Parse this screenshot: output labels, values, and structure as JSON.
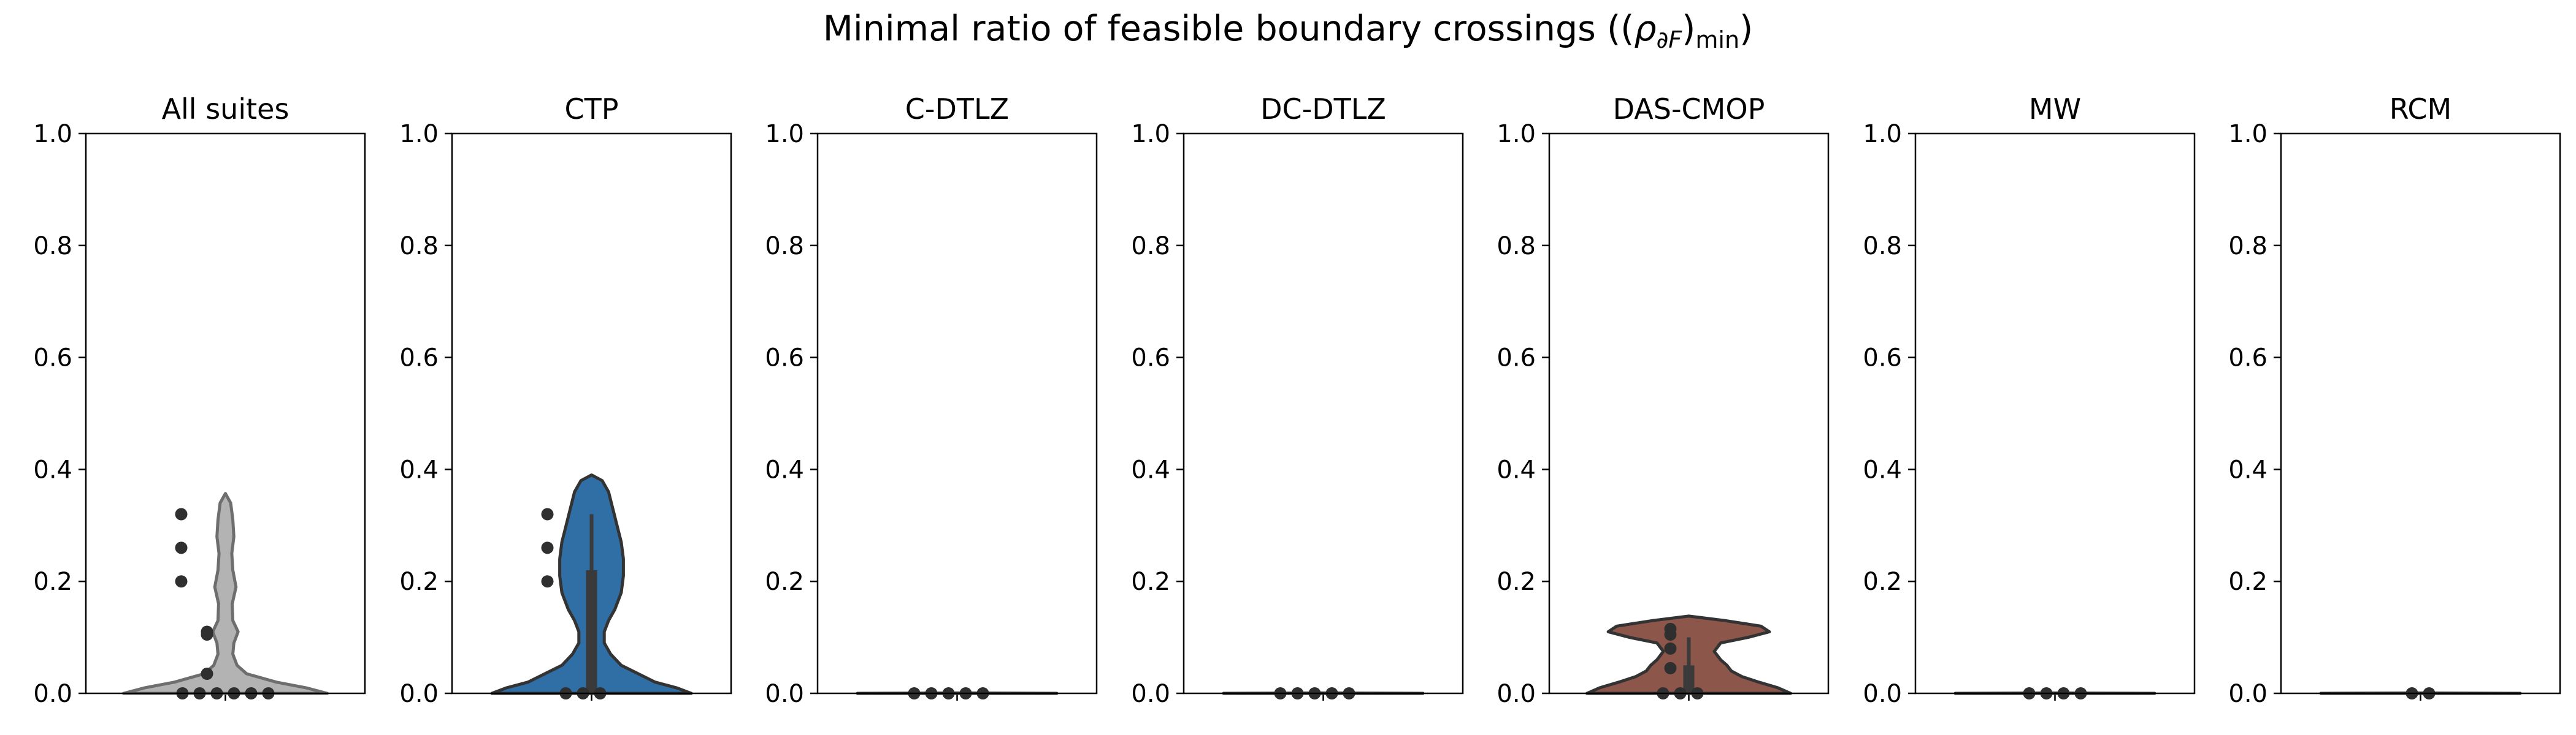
{
  "figure": {
    "title_main": "Minimal ratio of feasible boundary crossings ((",
    "title_rho": "ρ",
    "title_sub": "∂F",
    "title_close": ")",
    "title_min": "min",
    "title_end": ")"
  },
  "chart_data": [
    {
      "type": "violin",
      "title": "All suites",
      "color": "#b3b3b3",
      "edge_color": "#6e6e6e",
      "ylim": [
        0,
        1
      ],
      "yticks": [
        "0.0",
        "0.2",
        "0.4",
        "0.6",
        "0.8",
        "1.0"
      ],
      "points": [
        0.26,
        0.2,
        0.32,
        0.11,
        0.105,
        0.035,
        0.0,
        0.0,
        0.0,
        0.0,
        0.0,
        0.0
      ],
      "box": {
        "q1": 0.0,
        "median": 0.0,
        "q3": 0.0,
        "whisker_low": 0.0,
        "whisker_high": 0.0
      },
      "density": [
        [
          0.0,
          0.48
        ],
        [
          0.01,
          0.38
        ],
        [
          0.02,
          0.24
        ],
        [
          0.035,
          0.1
        ],
        [
          0.05,
          0.055
        ],
        [
          0.07,
          0.035
        ],
        [
          0.09,
          0.04
        ],
        [
          0.11,
          0.06
        ],
        [
          0.13,
          0.035
        ],
        [
          0.16,
          0.032
        ],
        [
          0.19,
          0.05
        ],
        [
          0.22,
          0.035
        ],
        [
          0.25,
          0.03
        ],
        [
          0.28,
          0.04
        ],
        [
          0.31,
          0.035
        ],
        [
          0.34,
          0.025
        ],
        [
          0.357,
          0.0
        ]
      ]
    },
    {
      "type": "violin",
      "title": "CTP",
      "color": "#2f6fa6",
      "edge_color": "#333333",
      "ylim": [
        0,
        1
      ],
      "yticks": [
        "0.0",
        "0.2",
        "0.4",
        "0.6",
        "0.8",
        "1.0"
      ],
      "points": [
        0.26,
        0.32,
        0.2,
        0.0,
        0.0,
        0.0
      ],
      "box": {
        "q1": 0.0,
        "median": 0.0,
        "q3": 0.22,
        "whisker_low": 0.0,
        "whisker_high": 0.32
      },
      "density": [
        [
          0.0,
          0.47
        ],
        [
          0.01,
          0.4
        ],
        [
          0.02,
          0.3
        ],
        [
          0.035,
          0.22
        ],
        [
          0.05,
          0.14
        ],
        [
          0.07,
          0.09
        ],
        [
          0.09,
          0.06
        ],
        [
          0.11,
          0.06
        ],
        [
          0.13,
          0.08
        ],
        [
          0.15,
          0.11
        ],
        [
          0.18,
          0.14
        ],
        [
          0.21,
          0.15
        ],
        [
          0.24,
          0.15
        ],
        [
          0.27,
          0.14
        ],
        [
          0.3,
          0.12
        ],
        [
          0.33,
          0.1
        ],
        [
          0.36,
          0.08
        ],
        [
          0.38,
          0.05
        ],
        [
          0.39,
          0.0
        ]
      ]
    },
    {
      "type": "violin",
      "title": "C-DTLZ",
      "color": "#ff7f0e",
      "edge_color": "#333333",
      "ylim": [
        0,
        1
      ],
      "yticks": [
        "0.0",
        "0.2",
        "0.4",
        "0.6",
        "0.8",
        "1.0"
      ],
      "points": [
        0.0,
        0.0,
        0.0,
        0.0,
        0.0
      ],
      "box": {
        "q1": 0.0,
        "median": 0.0,
        "q3": 0.0,
        "whisker_low": 0.0,
        "whisker_high": 0.0
      },
      "density": [
        [
          0.0,
          0.47
        ],
        [
          0.0005,
          0.0
        ]
      ]
    },
    {
      "type": "violin",
      "title": "DC-DTLZ",
      "color": "#2ca02c",
      "edge_color": "#333333",
      "ylim": [
        0,
        1
      ],
      "yticks": [
        "0.0",
        "0.2",
        "0.4",
        "0.6",
        "0.8",
        "1.0"
      ],
      "points": [
        0.0,
        0.0,
        0.0,
        0.0,
        0.0
      ],
      "box": {
        "q1": 0.0,
        "median": 0.0,
        "q3": 0.0,
        "whisker_low": 0.0,
        "whisker_high": 0.0
      },
      "density": [
        [
          0.0,
          0.47
        ],
        [
          0.0005,
          0.0
        ]
      ]
    },
    {
      "type": "violin",
      "title": "DAS-CMOP",
      "color": "#8c564b",
      "edge_color": "#333333",
      "ylim": [
        0,
        1
      ],
      "yticks": [
        "0.0",
        "0.2",
        "0.4",
        "0.6",
        "0.8",
        "1.0"
      ],
      "points": [
        0.115,
        0.105,
        0.08,
        0.045,
        0.0,
        0.0,
        0.0
      ],
      "box": {
        "q1": 0.0,
        "median": 0.02,
        "q3": 0.05,
        "whisker_low": 0.0,
        "whisker_high": 0.1
      },
      "density": [
        [
          0.0,
          0.48
        ],
        [
          0.01,
          0.42
        ],
        [
          0.02,
          0.33
        ],
        [
          0.03,
          0.25
        ],
        [
          0.04,
          0.2
        ],
        [
          0.05,
          0.18
        ],
        [
          0.06,
          0.15
        ],
        [
          0.075,
          0.12
        ],
        [
          0.09,
          0.15
        ],
        [
          0.1,
          0.28
        ],
        [
          0.11,
          0.38
        ],
        [
          0.12,
          0.34
        ],
        [
          0.13,
          0.17
        ],
        [
          0.138,
          0.0
        ]
      ]
    },
    {
      "type": "violin",
      "title": "MW",
      "color": "#e377c2",
      "edge_color": "#333333",
      "ylim": [
        0,
        1
      ],
      "yticks": [
        "0.0",
        "0.2",
        "0.4",
        "0.6",
        "0.8",
        "1.0"
      ],
      "points": [
        0.0,
        0.0,
        0.0,
        0.0
      ],
      "box": {
        "q1": 0.0,
        "median": 0.0,
        "q3": 0.0,
        "whisker_low": 0.0,
        "whisker_high": 0.0
      },
      "density": [
        [
          0.0,
          0.47
        ],
        [
          0.0005,
          0.0
        ]
      ]
    },
    {
      "type": "violin",
      "title": "RCM",
      "color": "#bcbd22",
      "edge_color": "#333333",
      "ylim": [
        0,
        1
      ],
      "yticks": [
        "0.0",
        "0.2",
        "0.4",
        "0.6",
        "0.8",
        "1.0"
      ],
      "points": [
        0.0,
        0.0
      ],
      "box": {
        "q1": 0.0,
        "median": 0.0,
        "q3": 0.0,
        "whisker_low": 0.0,
        "whisker_high": 0.0
      },
      "density": [
        [
          0.0,
          0.47
        ],
        [
          0.0005,
          0.0
        ]
      ]
    }
  ]
}
